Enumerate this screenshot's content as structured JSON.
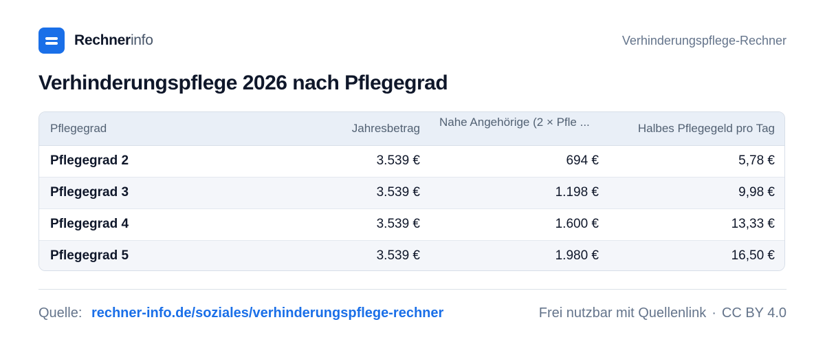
{
  "brand": {
    "name_bold": "Rechner",
    "name_light": "info"
  },
  "header": {
    "right_text": "Verhinderungspflege-Rechner"
  },
  "title": "Verhinderungspflege 2026 nach Pflegegrad",
  "table": {
    "columns": [
      "Pflegegrad",
      "Jahresbetrag",
      "Nahe Angehörige (2 × Pfle ...",
      "Halbes Pflegegeld pro Tag"
    ],
    "rows": [
      [
        "Pflegegrad 2",
        "3.539 €",
        "694 €",
        "5,78 €"
      ],
      [
        "Pflegegrad 3",
        "3.539 €",
        "1.198 €",
        "9,98 €"
      ],
      [
        "Pflegegrad 4",
        "3.539 €",
        "1.600 €",
        "13,33 €"
      ],
      [
        "Pflegegrad 5",
        "3.539 €",
        "1.980 €",
        "16,50 €"
      ]
    ]
  },
  "footer": {
    "source_label": "Quelle:",
    "source_link": "rechner-info.de/soziales/verhinderungspflege-rechner",
    "license_text": "Frei nutzbar mit Quellenlink",
    "separator": "·",
    "license": "CC BY 4.0"
  },
  "colors": {
    "accent": "#1a6fe8",
    "header_bg": "#e9eff7",
    "stripe": "#f4f6fa"
  },
  "icons": {
    "logo": "menu-lines-icon"
  }
}
